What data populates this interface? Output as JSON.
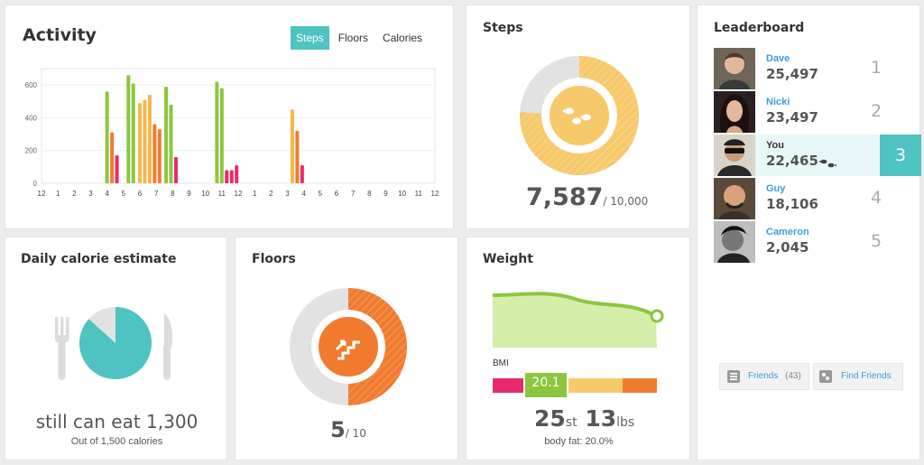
{
  "activity": {
    "title": "Activity",
    "tabs": [
      "Steps",
      "Floors",
      "Calories"
    ],
    "active_tab": 0,
    "chart_data": {
      "type": "bar",
      "y_ticks": [
        "600",
        "400",
        "200",
        "0"
      ],
      "x_ticks": [
        "12",
        "1",
        "2",
        "3",
        "4",
        "5",
        "6",
        "7",
        "8",
        "9",
        "10",
        "11",
        "12",
        "1",
        "2",
        "3",
        "4",
        "5",
        "6",
        "7",
        "8",
        "9",
        "10",
        "11",
        "12"
      ],
      "ylim": [
        0,
        700
      ],
      "bars": [
        {
          "x": 4.0,
          "value": 560,
          "color": "#8cc63f"
        },
        {
          "x": 4.3,
          "value": 310,
          "color": "#f07b2f"
        },
        {
          "x": 4.6,
          "value": 170,
          "color": "#e8296e"
        },
        {
          "x": 5.3,
          "value": 660,
          "color": "#8cc63f"
        },
        {
          "x": 5.6,
          "value": 610,
          "color": "#8cc63f"
        },
        {
          "x": 6.0,
          "value": 490,
          "color": "#f3b84b"
        },
        {
          "x": 6.3,
          "value": 510,
          "color": "#f3b84b"
        },
        {
          "x": 6.6,
          "value": 540,
          "color": "#f3b84b"
        },
        {
          "x": 6.9,
          "value": 360,
          "color": "#f07b2f"
        },
        {
          "x": 7.2,
          "value": 330,
          "color": "#f07b2f"
        },
        {
          "x": 7.6,
          "value": 590,
          "color": "#8cc63f"
        },
        {
          "x": 7.9,
          "value": 480,
          "color": "#8cc63f"
        },
        {
          "x": 8.2,
          "value": 160,
          "color": "#e8296e"
        },
        {
          "x": 10.7,
          "value": 620,
          "color": "#8cc63f"
        },
        {
          "x": 11.0,
          "value": 580,
          "color": "#8cc63f"
        },
        {
          "x": 11.3,
          "value": 80,
          "color": "#e8296e"
        },
        {
          "x": 11.6,
          "value": 80,
          "color": "#e8296e"
        },
        {
          "x": 11.9,
          "value": 110,
          "color": "#e8296e"
        },
        {
          "x": 15.3,
          "value": 450,
          "color": "#f3b84b"
        },
        {
          "x": 15.6,
          "value": 320,
          "color": "#f07b2f"
        },
        {
          "x": 15.9,
          "value": 110,
          "color": "#e8296e"
        }
      ]
    }
  },
  "steps": {
    "title": "Steps",
    "value": "7,587",
    "goal": "/ 10,000",
    "progress": 0.7587,
    "ring_color": "#f6c96a",
    "icon": "footsteps-icon"
  },
  "leaderboard": {
    "title": "Leaderboard",
    "rows": [
      {
        "name": "Dave",
        "count": "25,497",
        "rank": "1"
      },
      {
        "name": "Nicki",
        "count": "23,497",
        "rank": "2"
      },
      {
        "name": "You",
        "count": "22,465",
        "rank": "3"
      },
      {
        "name": "Guy",
        "count": "18,106",
        "rank": "4"
      },
      {
        "name": "Cameron",
        "count": "2,045",
        "rank": "5"
      }
    ],
    "friends_label": "Friends",
    "friends_count": "(43)",
    "find_friends_label": "Find Friends"
  },
  "calorie": {
    "title": "Daily calorie estimate",
    "headline": "still can eat 1,300",
    "sub": "Out of 1,500 calories",
    "progress": 0.8667,
    "pie_color": "#4ec3c1"
  },
  "floors": {
    "title": "Floors",
    "value": "5",
    "goal": "/ 10",
    "progress": 0.5,
    "ring_color": "#f07b2f",
    "icon": "stairs-icon"
  },
  "weight": {
    "title": "Weight",
    "bmi_label": "BMI",
    "bmi_value": "20.1",
    "stones": "25",
    "stones_unit": "st",
    "pounds": "13",
    "pounds_unit": "lbs",
    "body_fat": "body fat: 20.0%"
  }
}
